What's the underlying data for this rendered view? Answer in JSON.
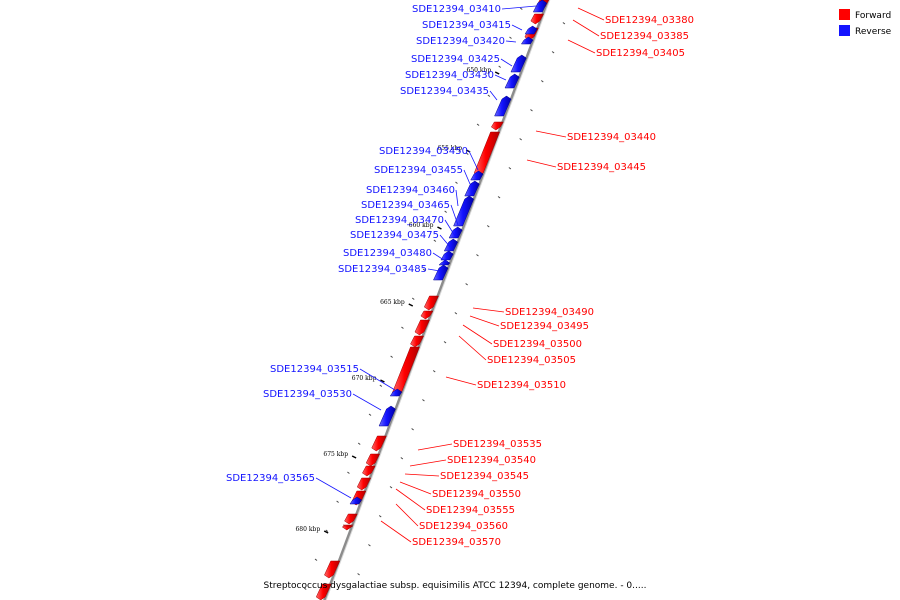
{
  "caption": "Streptococcus dysgalactiae subsp. equisimilis ATCC 12394, complete genome. - 0.....",
  "colors": {
    "forward": "#ff0000",
    "reverse": "#1414ff",
    "axis": "#909090"
  },
  "legend": [
    {
      "label": "Forward",
      "color": "#ff0000"
    },
    {
      "label": "Reverse",
      "color": "#1414ff"
    }
  ],
  "kbp_markers": [
    {
      "label": "650 kbp",
      "kbp": 650
    },
    {
      "label": "655 kbp",
      "kbp": 655
    },
    {
      "label": "660 kbp",
      "kbp": 660
    },
    {
      "label": "665 kbp",
      "kbp": 665
    },
    {
      "label": "670 kbp",
      "kbp": 670
    },
    {
      "label": "675 kbp",
      "kbp": 675
    },
    {
      "label": "680 kbp",
      "kbp": 680
    }
  ],
  "genes": [
    {
      "label": "SDE12394_03380",
      "strand": "forward",
      "side": "right"
    },
    {
      "label": "SDE12394_03385",
      "strand": "forward",
      "side": "right"
    },
    {
      "label": "SDE12394_03405",
      "strand": "forward",
      "side": "right"
    },
    {
      "label": "SDE12394_03410",
      "strand": "reverse",
      "side": "left"
    },
    {
      "label": "SDE12394_03415",
      "strand": "reverse",
      "side": "left"
    },
    {
      "label": "SDE12394_03420",
      "strand": "reverse",
      "side": "left"
    },
    {
      "label": "SDE12394_03425",
      "strand": "reverse",
      "side": "left"
    },
    {
      "label": "SDE12394_03430",
      "strand": "reverse",
      "side": "left"
    },
    {
      "label": "SDE12394_03435",
      "strand": "reverse",
      "side": "left"
    },
    {
      "label": "SDE12394_03440",
      "strand": "forward",
      "side": "right"
    },
    {
      "label": "SDE12394_03445",
      "strand": "forward",
      "side": "right"
    },
    {
      "label": "SDE12394_03450",
      "strand": "reverse",
      "side": "left"
    },
    {
      "label": "SDE12394_03455",
      "strand": "reverse",
      "side": "left"
    },
    {
      "label": "SDE12394_03460",
      "strand": "reverse",
      "side": "left"
    },
    {
      "label": "SDE12394_03465",
      "strand": "reverse",
      "side": "left"
    },
    {
      "label": "SDE12394_03470",
      "strand": "reverse",
      "side": "left"
    },
    {
      "label": "SDE12394_03475",
      "strand": "reverse",
      "side": "left"
    },
    {
      "label": "SDE12394_03480",
      "strand": "reverse",
      "side": "left"
    },
    {
      "label": "SDE12394_03485",
      "strand": "reverse",
      "side": "left"
    },
    {
      "label": "SDE12394_03490",
      "strand": "forward",
      "side": "right"
    },
    {
      "label": "SDE12394_03495",
      "strand": "forward",
      "side": "right"
    },
    {
      "label": "SDE12394_03500",
      "strand": "forward",
      "side": "right"
    },
    {
      "label": "SDE12394_03505",
      "strand": "forward",
      "side": "right"
    },
    {
      "label": "SDE12394_03510",
      "strand": "forward",
      "side": "right"
    },
    {
      "label": "SDE12394_03515",
      "strand": "reverse",
      "side": "left"
    },
    {
      "label": "SDE12394_03530",
      "strand": "reverse",
      "side": "left"
    },
    {
      "label": "SDE12394_03535",
      "strand": "forward",
      "side": "right"
    },
    {
      "label": "SDE12394_03540",
      "strand": "forward",
      "side": "right"
    },
    {
      "label": "SDE12394_03545",
      "strand": "forward",
      "side": "right"
    },
    {
      "label": "SDE12394_03550",
      "strand": "forward",
      "side": "right"
    },
    {
      "label": "SDE12394_03555",
      "strand": "forward",
      "side": "right"
    },
    {
      "label": "SDE12394_03560",
      "strand": "forward",
      "side": "right"
    },
    {
      "label": "SDE12394_03565",
      "strand": "reverse",
      "side": "left"
    },
    {
      "label": "SDE12394_03570",
      "strand": "forward",
      "side": "right"
    }
  ]
}
